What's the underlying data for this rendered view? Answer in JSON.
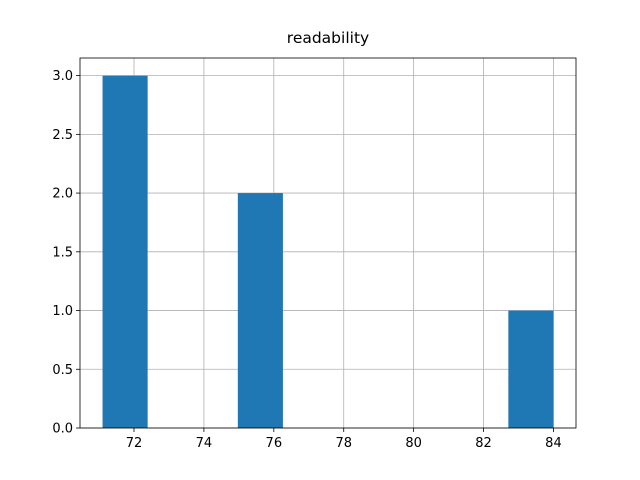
{
  "chart_data": {
    "type": "histogram",
    "title": "readability",
    "bins": [
      71.1,
      72.39,
      73.68,
      74.97,
      76.26,
      77.55,
      78.84,
      80.13,
      81.42,
      82.71,
      84.0
    ],
    "values": [
      3,
      0,
      0,
      2,
      0,
      0,
      0,
      0,
      0,
      1
    ],
    "color": "#1f77b4",
    "xlim": [
      70.455,
      84.645
    ],
    "xticks": [
      72,
      74,
      76,
      78,
      80,
      82,
      84
    ],
    "ylim": [
      0,
      3.15
    ],
    "yticks": [
      {
        "value": 0,
        "label": "0.0"
      },
      {
        "value": 0.5,
        "label": "0.5"
      },
      {
        "value": 1,
        "label": "1.0"
      },
      {
        "value": 1.5,
        "label": "1.5"
      },
      {
        "value": 2,
        "label": "2.0"
      },
      {
        "value": 2.5,
        "label": "2.5"
      },
      {
        "value": 3,
        "label": "3.0"
      }
    ],
    "grid": true
  }
}
